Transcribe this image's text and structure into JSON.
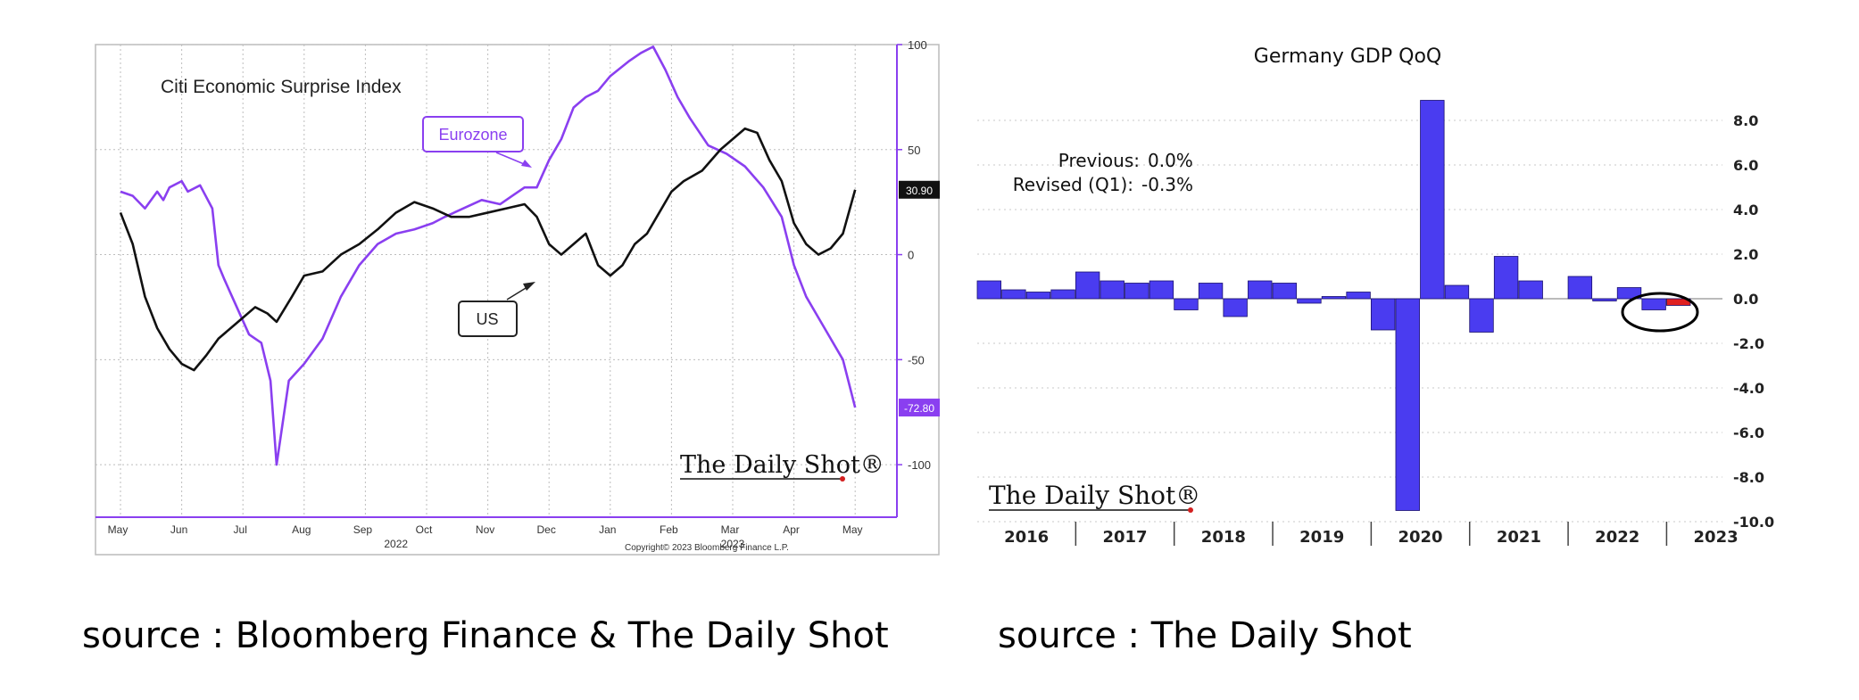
{
  "captions": {
    "left": "source : Bloomberg Finance & The Daily Shot",
    "right": "source : The Daily Shot"
  },
  "chart_data": [
    {
      "type": "line",
      "title": "Citi Economic Surprise Index",
      "x_axis": {
        "months": [
          "May",
          "Jun",
          "Jul",
          "Aug",
          "Sep",
          "Oct",
          "Nov",
          "Dec",
          "Jan",
          "Feb",
          "Mar",
          "Apr",
          "May"
        ],
        "years": [
          "2022",
          "2023"
        ]
      },
      "yticks": [
        "100",
        "50",
        "0",
        "-50",
        "-100"
      ],
      "ylim": [
        -125,
        100
      ],
      "grid": true,
      "series": [
        {
          "name": "Eurozone",
          "color": "#8a3ff0",
          "last_value": "-72.80",
          "x": [
            0,
            0.2,
            0.4,
            0.6,
            0.7,
            0.8,
            1.0,
            1.1,
            1.3,
            1.5,
            1.6,
            1.7,
            1.9,
            2.1,
            2.3,
            2.45,
            2.55,
            2.75,
            3.0,
            3.3,
            3.6,
            3.9,
            4.2,
            4.5,
            4.8,
            5.1,
            5.3,
            5.6,
            5.9,
            6.2,
            6.4,
            6.6,
            6.8,
            7.0,
            7.2,
            7.4,
            7.6,
            7.8,
            8.0,
            8.3,
            8.5,
            8.7,
            8.9,
            9.1,
            9.3,
            9.6,
            9.9,
            10.2,
            10.5,
            10.8,
            11.0,
            11.2,
            11.4,
            11.6,
            11.8,
            12.0
          ],
          "y": [
            30,
            28,
            22,
            30,
            26,
            32,
            35,
            30,
            33,
            22,
            -5,
            -12,
            -25,
            -38,
            -42,
            -60,
            -100,
            -60,
            -52,
            -40,
            -20,
            -5,
            5,
            10,
            12,
            15,
            18,
            22,
            26,
            24,
            28,
            32,
            32,
            45,
            55,
            70,
            75,
            78,
            85,
            92,
            96,
            99,
            88,
            75,
            65,
            52,
            48,
            42,
            32,
            18,
            -5,
            -20,
            -30,
            -40,
            -50,
            -72.8
          ]
        },
        {
          "name": "US",
          "color": "#111111",
          "last_value": "30.90",
          "x": [
            0,
            0.2,
            0.4,
            0.6,
            0.8,
            1.0,
            1.2,
            1.4,
            1.6,
            1.8,
            2.0,
            2.2,
            2.4,
            2.55,
            2.8,
            3.0,
            3.3,
            3.6,
            3.9,
            4.2,
            4.5,
            4.8,
            5.1,
            5.4,
            5.7,
            6.0,
            6.3,
            6.6,
            6.8,
            7.0,
            7.2,
            7.4,
            7.6,
            7.8,
            8.0,
            8.2,
            8.4,
            8.6,
            8.8,
            9.0,
            9.2,
            9.5,
            9.8,
            10.0,
            10.2,
            10.4,
            10.6,
            10.8,
            11.0,
            11.2,
            11.4,
            11.6,
            11.8,
            12.0
          ],
          "y": [
            20,
            5,
            -20,
            -35,
            -45,
            -52,
            -55,
            -48,
            -40,
            -35,
            -30,
            -25,
            -28,
            -32,
            -20,
            -10,
            -8,
            0,
            5,
            12,
            20,
            25,
            22,
            18,
            18,
            20,
            22,
            24,
            18,
            5,
            0,
            5,
            10,
            -5,
            -10,
            -5,
            5,
            10,
            20,
            30,
            35,
            40,
            50,
            55,
            60,
            58,
            45,
            35,
            15,
            5,
            0,
            3,
            10,
            30.9
          ]
        }
      ],
      "annotations": [
        "Eurozone",
        "US",
        "Copyright© 2023 Bloomberg Finance L.P.",
        "The Daily Shot®"
      ]
    },
    {
      "type": "bar",
      "title": "Germany GDP QoQ",
      "notes": [
        {
          "label": "Previous:",
          "value": "0.0%"
        },
        {
          "label": "Revised (Q1):",
          "value": "-0.3%"
        }
      ],
      "years": [
        "2016",
        "2017",
        "2018",
        "2019",
        "2020",
        "2021",
        "2022",
        "2023"
      ],
      "yticks": [
        "8.0",
        "6.0",
        "4.0",
        "2.0",
        "0.0",
        "-2.0",
        "-4.0",
        "-6.0",
        "-8.0",
        "-10.0"
      ],
      "ylim": [
        -10,
        9
      ],
      "grid": true,
      "values": [
        0.8,
        0.4,
        0.3,
        0.4,
        1.2,
        0.8,
        0.7,
        0.8,
        -0.5,
        0.7,
        -0.8,
        0.8,
        0.7,
        -0.2,
        0.1,
        0.3,
        -1.4,
        -9.5,
        8.9,
        0.6,
        -1.5,
        1.9,
        0.8,
        0.0,
        1.0,
        -0.1,
        0.5,
        -0.5,
        -0.3
      ],
      "colors": {
        "bar": "#4a3cf0",
        "highlight": "#e02020"
      },
      "annotations": [
        "The Daily Shot®"
      ]
    }
  ]
}
